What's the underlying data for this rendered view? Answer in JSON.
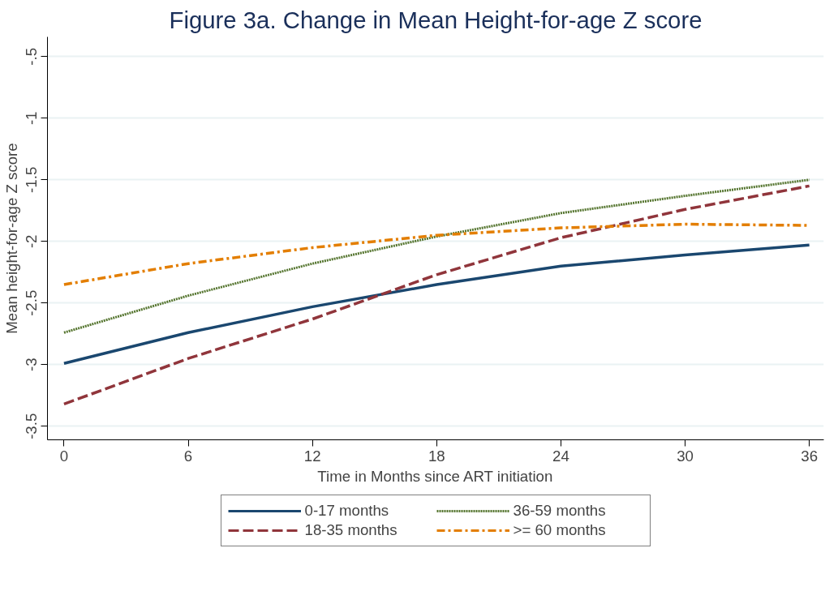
{
  "chart_data": {
    "type": "line",
    "title": "Figure 3a. Change in Mean Height-for-age Z score",
    "xlabel": "Time in Months since ART initiation",
    "ylabel": "Mean height-for-age Z score",
    "x": [
      0,
      6,
      12,
      18,
      24,
      30,
      36
    ],
    "series": [
      {
        "name": "0-17 months",
        "color": "#1a476f",
        "line_style": "solid",
        "values": [
          -2.99,
          -2.74,
          -2.53,
          -2.35,
          -2.2,
          -2.11,
          -2.03
        ]
      },
      {
        "name": "18-35 months",
        "color": "#90353b",
        "line_style": "dashed",
        "values": [
          -3.32,
          -2.95,
          -2.63,
          -2.27,
          -1.97,
          -1.74,
          -1.55
        ]
      },
      {
        "name": "36-59 months",
        "color": "#55752f",
        "line_style": "dotted",
        "values": [
          -2.74,
          -2.44,
          -2.18,
          -1.96,
          -1.77,
          -1.63,
          -1.5
        ]
      },
      {
        "name": ">= 60 months",
        "color": "#e37e00",
        "line_style": "dashdot",
        "values": [
          -2.35,
          -2.18,
          -2.05,
          -1.95,
          -1.89,
          -1.86,
          -1.87
        ]
      }
    ],
    "xlim": [
      -0.8,
      36.7
    ],
    "ylim": [
      -3.61,
      -0.34
    ],
    "xticks": [
      0,
      6,
      12,
      18,
      24,
      30,
      36
    ],
    "yticks": [
      {
        "value": -3.5,
        "label": "-3.5"
      },
      {
        "value": -3,
        "label": "-3"
      },
      {
        "value": -2.5,
        "label": "-2.5"
      },
      {
        "value": -2,
        "label": "-2"
      },
      {
        "value": -1.5,
        "label": "-1.5"
      },
      {
        "value": -1,
        "label": "-1"
      },
      {
        "value": -0.5,
        "label": "-.5"
      }
    ],
    "grid": "y",
    "legend": "bottom",
    "marker": "none"
  }
}
